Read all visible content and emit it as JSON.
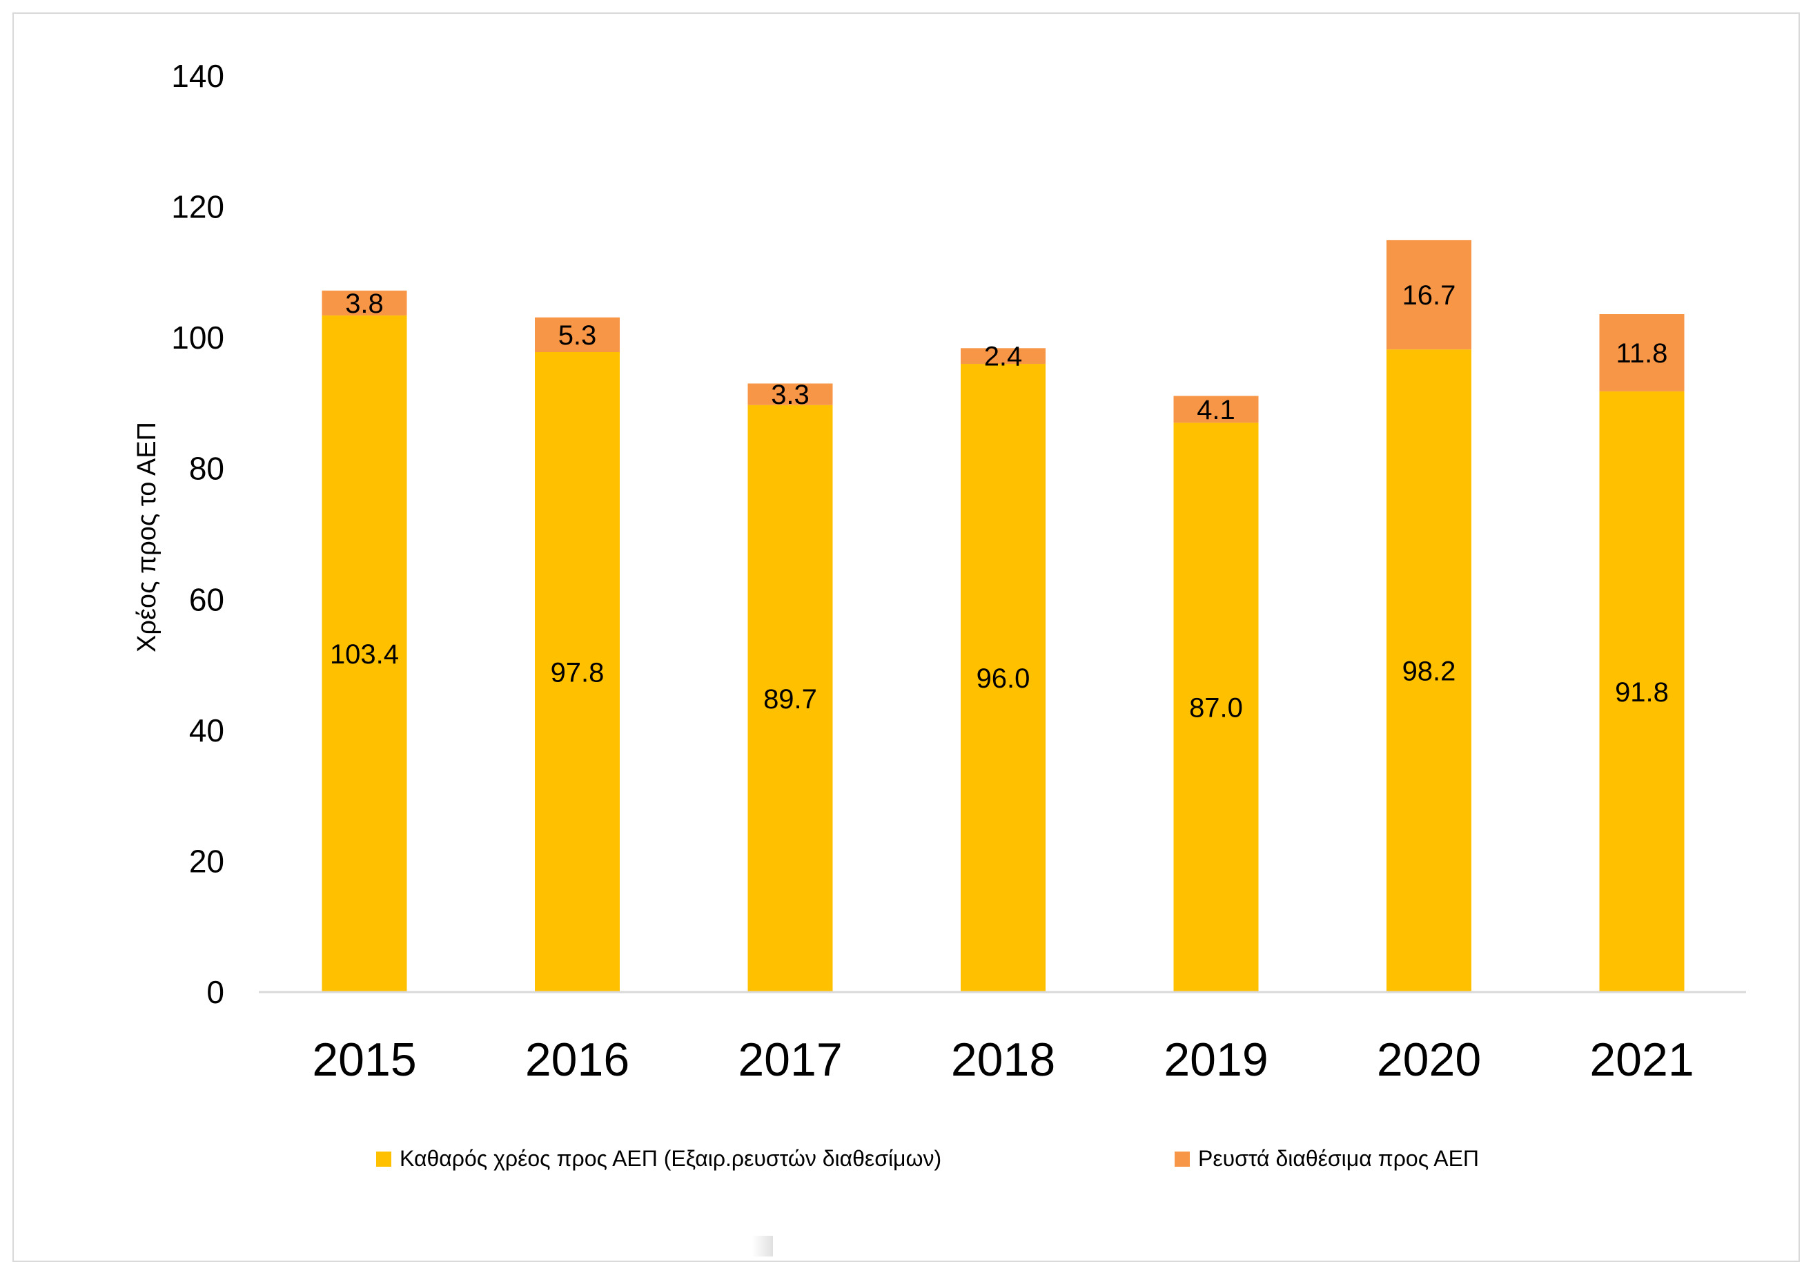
{
  "colors": {
    "net_debt": "#FFC000",
    "liquid_assets": "#F79646",
    "axis_line": "#d9d9d9"
  },
  "chart_data": {
    "type": "bar",
    "stacked": true,
    "categories": [
      "2015",
      "2016",
      "2017",
      "2018",
      "2019",
      "2020",
      "2021"
    ],
    "series": [
      {
        "name": "Καθαρός χρέος προς ΑΕΠ (Εξαιρ.ρευστών διαθεσίμων)",
        "values": [
          103.4,
          97.8,
          89.7,
          96.0,
          87.0,
          98.2,
          91.8
        ]
      },
      {
        "name": "Ρευστά διαθέσιμα προς ΑΕΠ",
        "values": [
          3.8,
          5.3,
          3.3,
          2.4,
          4.1,
          16.7,
          11.8
        ]
      }
    ],
    "value_labels": [
      [
        "103.4",
        "97.8",
        "89.7",
        "96.0",
        "87.0",
        "98.2",
        "91.8"
      ],
      [
        "3.8",
        "5.3",
        "3.3",
        "2.4",
        "4.1",
        "16.7",
        "11.8"
      ]
    ],
    "title": "",
    "xlabel": "",
    "ylabel": "Χρέος προς το ΑΕΠ",
    "ylim": [
      0,
      140
    ],
    "yticks": [
      "0",
      "20",
      "40",
      "60",
      "80",
      "100",
      "120",
      "140"
    ],
    "grid": false,
    "legend_position": "bottom"
  }
}
